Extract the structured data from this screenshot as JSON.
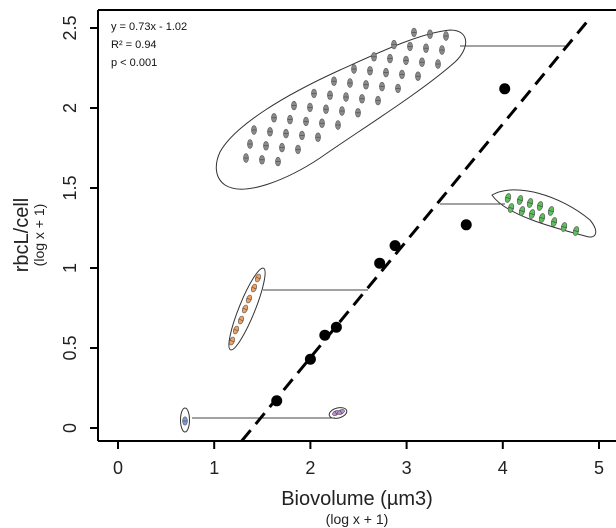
{
  "chart_data": {
    "type": "scatter",
    "title": "",
    "xlabel": "Biovolume (µm3)",
    "xlabel_sub": "(log x + 1)",
    "ylabel": "rbcL/cell",
    "ylabel_sub": "(log x + 1)",
    "xlim": [
      0,
      5.2
    ],
    "ylim": [
      -0.1,
      2.6
    ],
    "xticks": [
      0,
      1,
      2,
      3,
      4,
      5
    ],
    "xtick_labels": [
      "0",
      "1",
      "2",
      "3",
      "4",
      "5"
    ],
    "yticks": [
      0,
      0.5,
      1,
      1.5,
      2,
      2.5
    ],
    "ytick_labels": [
      "0",
      "0.5",
      "1",
      "1.5",
      "2",
      "2.5"
    ],
    "grid": false,
    "points": [
      {
        "x": 1.65,
        "y": 0.17
      },
      {
        "x": 2.0,
        "y": 0.43
      },
      {
        "x": 2.15,
        "y": 0.58
      },
      {
        "x": 2.27,
        "y": 0.63
      },
      {
        "x": 2.72,
        "y": 1.03
      },
      {
        "x": 2.88,
        "y": 1.14
      },
      {
        "x": 3.62,
        "y": 1.27
      },
      {
        "x": 4.02,
        "y": 2.12
      }
    ],
    "fit_line": {
      "slope": 0.73,
      "intercept": -1.02,
      "style": "dashed"
    },
    "annotations": [
      "y = 0.73x - 1.02",
      "R² = 0.94",
      "p < 0.001"
    ],
    "point_color": "#000000",
    "cell_icons": [
      {
        "name": "blue-cell-icon",
        "color": "#7a9ad6"
      },
      {
        "name": "purple-cell-icon",
        "color": "#c08ad6"
      },
      {
        "name": "orange-cell-icon",
        "color": "#f0a060"
      },
      {
        "name": "green-cell-icon",
        "color": "#5cc05c"
      },
      {
        "name": "grey-cell-colony-icon",
        "color": "#8a8a8a"
      }
    ]
  }
}
